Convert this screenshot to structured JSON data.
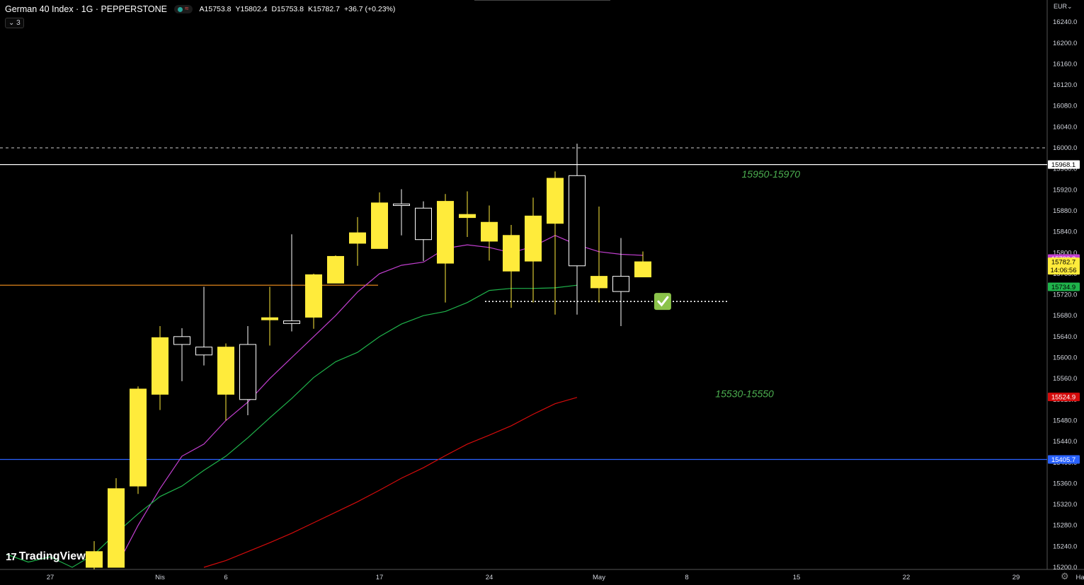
{
  "header": {
    "symbol_title": "German 40 Index · 1G · PEPPERSTONE",
    "open": "A15753.8",
    "high": "Y15802.4",
    "low": "D15753.8",
    "close": "K15782.7",
    "change": "+36.7 (+0.23%)",
    "indicator_count": "3"
  },
  "currency": "EUR",
  "logo_text": "TradingView",
  "icons": {
    "status_online": "dot-icon",
    "status_wave": "wave-icon",
    "collapse": "chevron-down-icon",
    "settings": "gear-icon",
    "checkmark": "checkmark-icon",
    "logo": "tradingview-logo-icon"
  },
  "colors": {
    "background": "#000000",
    "bull_candle": "#ffeb3b",
    "bear_candle": "#000000",
    "bear_outline": "#ffffff",
    "ema_purple": "#c23fd0",
    "ema_green": "#1fb34b",
    "ema_red": "#d40b0b",
    "orange_line": "#f7931e",
    "blue_line": "#2962ff",
    "annotation_green": "#4caf50"
  },
  "chart_data": {
    "type": "candlestick",
    "ylim": [
      15200,
      16260
    ],
    "y_ticks": [
      "16240.0",
      "16200.0",
      "16160.0",
      "16120.0",
      "16080.0",
      "16040.0",
      "16000.0",
      "15960.0",
      "15920.0",
      "15880.0",
      "15840.0",
      "15800.0",
      "15760.0",
      "15720.0",
      "15680.0",
      "15640.0",
      "15600.0",
      "15560.0",
      "15520.0",
      "15480.0",
      "15440.0",
      "15400.0",
      "15360.0",
      "15320.0",
      "15280.0",
      "15240.0",
      "15200.0"
    ],
    "x_ticks": [
      {
        "label": "27",
        "index": -2
      },
      {
        "label": "Nis",
        "index": 3
      },
      {
        "label": "6",
        "index": 6
      },
      {
        "label": "17",
        "index": 13
      },
      {
        "label": "24",
        "index": 18
      },
      {
        "label": "May",
        "index": 23
      },
      {
        "label": "8",
        "index": 27
      },
      {
        "label": "15",
        "index": 32
      },
      {
        "label": "22",
        "index": 37
      },
      {
        "label": "29",
        "index": 42
      },
      {
        "label": "Haz",
        "index": 45
      }
    ],
    "candles": [
      {
        "o": 15200,
        "h": 15250,
        "l": 15150,
        "c": 15230
      },
      {
        "o": 15200,
        "h": 15370,
        "l": 15200,
        "c": 15350
      },
      {
        "o": 15355,
        "h": 15545,
        "l": 15340,
        "c": 15540
      },
      {
        "o": 15530,
        "h": 15660,
        "l": 15500,
        "c": 15638
      },
      {
        "o": 15640,
        "h": 15656,
        "l": 15555,
        "c": 15625
      },
      {
        "o": 15620,
        "h": 15735,
        "l": 15585,
        "c": 15605
      },
      {
        "o": 15530,
        "h": 15627,
        "l": 15480,
        "c": 15620
      },
      {
        "o": 15625,
        "h": 15660,
        "l": 15490,
        "c": 15520
      },
      {
        "o": 15672,
        "h": 15735,
        "l": 15623,
        "c": 15676
      },
      {
        "o": 15670,
        "h": 15835,
        "l": 15650,
        "c": 15665
      },
      {
        "o": 15677,
        "h": 15760,
        "l": 15655,
        "c": 15758
      },
      {
        "o": 15742,
        "h": 15795,
        "l": 15742,
        "c": 15793
      },
      {
        "o": 15818,
        "h": 15868,
        "l": 15775,
        "c": 15838
      },
      {
        "o": 15808,
        "h": 15915,
        "l": 15808,
        "c": 15895
      },
      {
        "o": 15893,
        "h": 15921,
        "l": 15833,
        "c": 15890
      },
      {
        "o": 15885,
        "h": 15898,
        "l": 15784,
        "c": 15825
      },
      {
        "o": 15780,
        "h": 15912,
        "l": 15705,
        "c": 15898
      },
      {
        "o": 15867,
        "h": 15917,
        "l": 15830,
        "c": 15873
      },
      {
        "o": 15822,
        "h": 15890,
        "l": 15785,
        "c": 15858
      },
      {
        "o": 15765,
        "h": 15853,
        "l": 15695,
        "c": 15833
      },
      {
        "o": 15784,
        "h": 15905,
        "l": 15705,
        "c": 15870
      },
      {
        "o": 15856,
        "h": 15955,
        "l": 15682,
        "c": 15942
      },
      {
        "o": 15947,
        "h": 16008,
        "l": 15682,
        "c": 15775
      },
      {
        "o": 15733,
        "h": 15888,
        "l": 15705,
        "c": 15755
      },
      {
        "o": 15755,
        "h": 15828,
        "l": 15660,
        "c": 15726
      },
      {
        "o": 15753.8,
        "h": 15802.4,
        "l": 15753.8,
        "c": 15782.7
      }
    ],
    "series": [
      {
        "name": "EMA purple",
        "color": "#c23fd0",
        "start_index": 1,
        "values": [
          15200,
          15280,
          15350,
          15412,
          15435,
          15480,
          15515,
          15560,
          15600,
          15640,
          15680,
          15725,
          15760,
          15776,
          15782,
          15808,
          15815,
          15810,
          15800,
          15812,
          15833,
          15815,
          15802,
          15797,
          15795
        ]
      },
      {
        "name": "EMA green",
        "color": "#1fb34b",
        "start_index": -4,
        "values": [
          15225,
          15210,
          15220,
          15200,
          15225,
          15265,
          15302,
          15335,
          15355,
          15385,
          15412,
          15447,
          15485,
          15522,
          15562,
          15592,
          15610,
          15640,
          15664,
          15680,
          15688,
          15705,
          15728,
          15732,
          15732,
          15733,
          15738
        ]
      },
      {
        "name": "EMA red",
        "color": "#d40b0b",
        "start_index": 5,
        "values": [
          15200,
          15213,
          15230,
          15247,
          15265,
          15285,
          15305,
          15325,
          15347,
          15370,
          15390,
          15413,
          15435,
          15452,
          15470,
          15492,
          15512,
          15524
        ]
      }
    ],
    "levels": [
      {
        "value": 16000,
        "style": "dashed",
        "color": "#cccccc"
      },
      {
        "value": 15968.1,
        "style": "solid",
        "color": "#ffffff",
        "label": "15968.1"
      },
      {
        "value": 15405.7,
        "style": "solid",
        "color": "#2962ff",
        "label": "15405.7"
      },
      {
        "value": 15738,
        "style": "solid",
        "color": "#f7931e",
        "x_end_index": 13
      },
      {
        "value": 15707,
        "style": "dotted",
        "color": "#ffffff",
        "x_start_index": 18,
        "x_end_index": 29
      }
    ],
    "price_labels": [
      {
        "value": 15788.8,
        "text": "15788.8",
        "bg": "#c23fd0",
        "fg": "#ffffff"
      },
      {
        "value": 15782.7,
        "text": "15782.7",
        "sub": "14:06:56",
        "bg": "#ffeb3b",
        "fg": "#000000"
      },
      {
        "value": 15734.9,
        "text": "15734.9",
        "bg": "#1fb34b",
        "fg": "#000000"
      },
      {
        "value": 15524.9,
        "text": "15524.9",
        "bg": "#d40b0b",
        "fg": "#ffffff"
      }
    ],
    "annotations": [
      {
        "text": "15950-15970",
        "value": 15950,
        "index": 29.5
      },
      {
        "text": "15530-15550",
        "value": 15531,
        "index": 28.3
      }
    ]
  }
}
